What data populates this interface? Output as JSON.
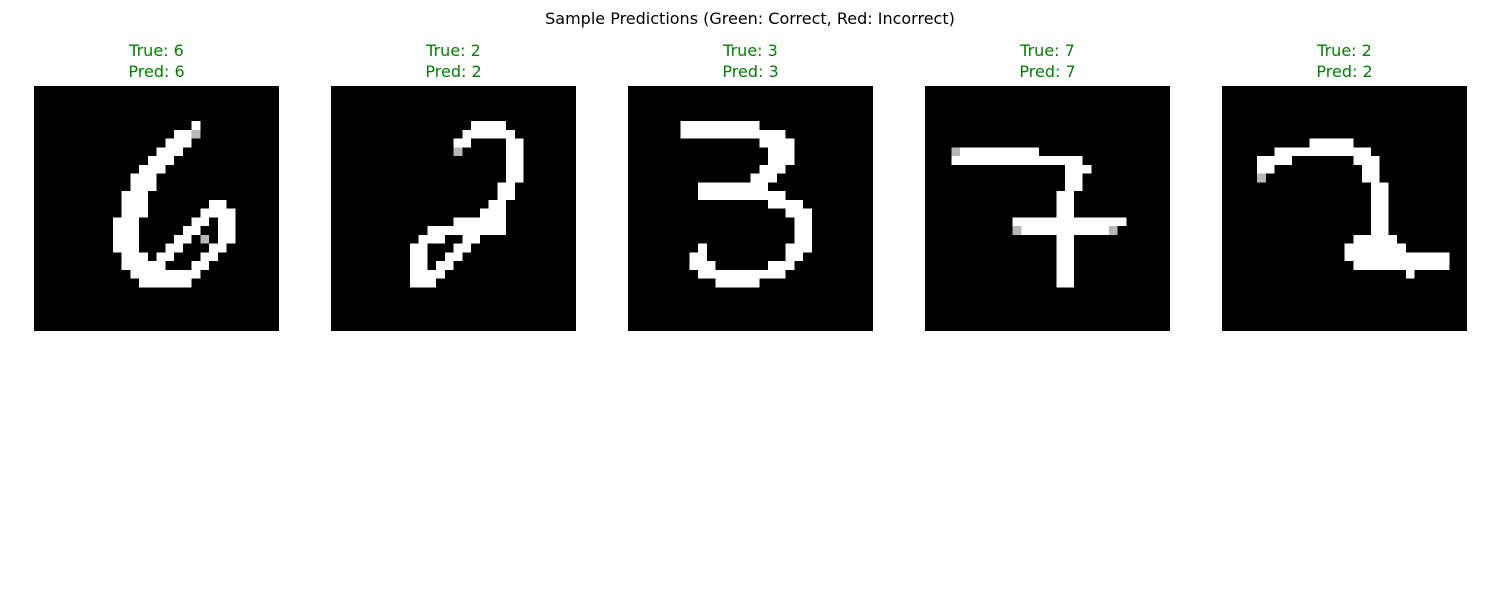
{
  "figure": {
    "title": "Sample Predictions (Green: Correct, Red: Incorrect)",
    "colors": {
      "correct": "#008000",
      "incorrect": "#ff0000",
      "background": "#ffffff",
      "image_background": "#000000"
    }
  },
  "panels": [
    {
      "true_text": "True: 6",
      "pred_text": "Pred: 6",
      "true_label": 6,
      "pred_label": 6,
      "correct": true,
      "image": [
        "............................",
        "............................",
        "............................",
        "............................",
        "..................@.........",
        "................@@#.........",
        "...............@@@..........",
        "..............@@@...........",
        ".............@@@............",
        "............@@@.............",
        "...........@@@..............",
        "...........@@@..............",
        "..........@@@...............",
        "..........@@@.......@@......",
        "..........@@@......@@@@.....",
        ".........@@@......@@.@@.....",
        ".........@@@.....@@..@@.....",
        ".........@@@....@@.#.@@.....",
        ".........@@@...@@...@@......",
        "..........@@@.@@...@@.......",
        "..........@@@@@...@@........",
        "...........@@@@@@@@.........",
        "............@@@@@@..........",
        "............................",
        "............................",
        "............................",
        "............................",
        "............................"
      ]
    },
    {
      "true_text": "True: 2",
      "pred_text": "Pred: 2",
      "true_label": 2,
      "pred_label": 2,
      "correct": true,
      "image": [
        "............................",
        "............................",
        "............................",
        "............................",
        "................@@@@........",
        "...............@@@@@@.......",
        "..............@@....@@......",
        "..............#.....@@......",
        "....................@@......",
        "....................@@......",
        "....................@@......",
        "...................@@.......",
        "...................@@.......",
        "..................@@........",
        ".................@@@........",
        "..............@@@@@@........",
        "...........@@@@@@@@@........",
        "..........@@@..@@...........",
        ".........@@...@@............",
        ".........@@..@@.............",
        ".........@@.@@..............",
        ".........@@@@...............",
        ".........@@@................",
        "............................",
        "............................",
        "............................",
        "............................",
        "............................"
      ]
    },
    {
      "true_text": "True: 3",
      "pred_text": "Pred: 3",
      "true_label": 3,
      "pred_label": 3,
      "correct": true,
      "image": [
        "............................",
        "............................",
        "............................",
        "............................",
        "......@@@@@@@@@.............",
        "......@@@@@@@@@@@@..........",
        "...............@@@@.........",
        "................@@@.........",
        "................@@@.........",
        "...............@@@..........",
        "..............@@@...........",
        "........@@@@@@@@............",
        "........@@@@@@@@@@..........",
        "................@@@@........",
        "..................@@@.......",
        "...................@@.......",
        "...................@@.......",
        "...................@@.......",
        "........@.........@@@.......",
        ".......@@.........@@........",
        ".......@@@......@@@.........",
        "........@@@@@@@@@@..........",
        "..........@@@@@.............",
        "............................",
        "............................",
        "............................",
        "............................",
        "............................"
      ]
    },
    {
      "true_text": "True: 7",
      "pred_text": "Pred: 7",
      "true_label": 7,
      "pred_label": 7,
      "correct": true,
      "image": [
        "............................",
        "............................",
        "............................",
        "............................",
        "............................",
        "............................",
        "............................",
        "...#@@@@@@@@@...............",
        "...@@@@@@@@@@@@@@@..........",
        "................@@@.........",
        "................@@..........",
        "................@@..........",
        "...............@@...........",
        "...............@@...........",
        "...............@@...........",
        "..........@@@@@@@@@@@@@.....",
        "..........#@@@@@@@@@@#......",
        "...............@@...........",
        "...............@@...........",
        "...............@@...........",
        "...............@@...........",
        "...............@@...........",
        "...............@@...........",
        "............................",
        "............................",
        "............................",
        "............................",
        "............................"
      ]
    },
    {
      "true_text": "True: 2",
      "pred_text": "Pred: 2",
      "true_label": 2,
      "pred_label": 2,
      "correct": true,
      "image": [
        "............................",
        "............................",
        "............................",
        "............................",
        "............................",
        "............................",
        "..........@@@@@.............",
        "......@@@@@@@@@@@...........",
        "....@@@@.......@@@..........",
        "....@@..........@@..........",
        "....#...........@@..........",
        ".................@@.........",
        ".................@@.........",
        ".................@@.........",
        ".................@@.........",
        ".................@@.........",
        ".................@@.........",
        "...............@@@@@........",
        "..............@@@@@@@.......",
        "..............@@@@@@@@@@@@..",
        "...............@@@@@@@@@@@..",
        ".....................@......",
        "............................",
        "............................",
        "............................",
        "............................",
        "............................",
        "............................"
      ]
    }
  ]
}
